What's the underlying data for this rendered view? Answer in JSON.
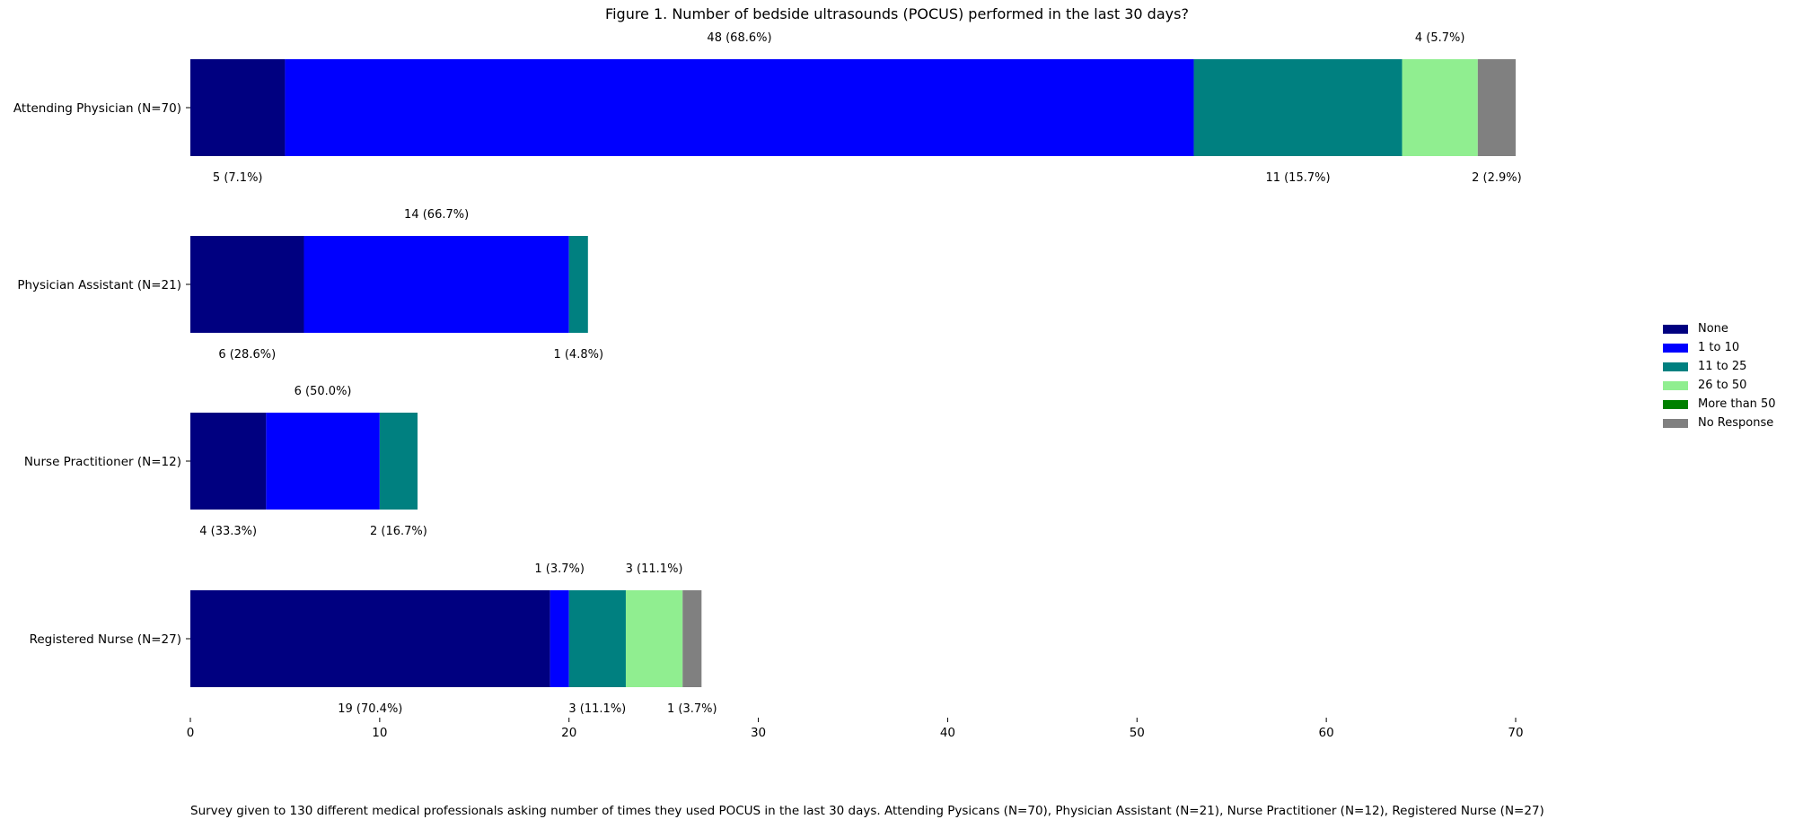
{
  "chart_data": {
    "type": "bar",
    "orientation": "horizontal",
    "stacked": true,
    "title": "Figure 1. Number of bedside ultrasounds (POCUS) performed in the last 30 days?",
    "categories": [
      "Attending Physician (N=70)",
      "Physician Assistant (N=21)",
      "Nurse Practitioner (N=12)",
      "Registered Nurse (N=27)"
    ],
    "series": [
      {
        "name": "None",
        "color": "#000080",
        "values": [
          5,
          6,
          4,
          19
        ]
      },
      {
        "name": "1 to 10",
        "color": "#0000ff",
        "values": [
          48,
          14,
          6,
          1
        ]
      },
      {
        "name": "11 to 25",
        "color": "#008080",
        "values": [
          11,
          1,
          2,
          3
        ]
      },
      {
        "name": "26 to 50",
        "color": "#90ee90",
        "values": [
          4,
          0,
          0,
          3
        ]
      },
      {
        "name": "More than 50",
        "color": "#008000",
        "values": [
          0,
          0,
          0,
          0
        ]
      },
      {
        "name": "No Response",
        "color": "#808080",
        "values": [
          2,
          0,
          0,
          1
        ]
      }
    ],
    "data_labels": [
      [
        "5 (7.1%)",
        "48 (68.6%)",
        "11 (15.7%)",
        "4 (5.7%)",
        "",
        "2 (2.9%)"
      ],
      [
        "6 (28.6%)",
        "14 (66.7%)",
        "1 (4.8%)",
        "",
        "",
        ""
      ],
      [
        "4 (33.3%)",
        "6 (50.0%)",
        "2 (16.7%)",
        "",
        "",
        ""
      ],
      [
        "19 (70.4%)",
        "1 (3.7%)",
        "3 (11.1%)",
        "3 (11.1%)",
        "",
        "1 (3.7%)"
      ]
    ],
    "xlim": [
      0,
      70
    ],
    "xticks": [
      0,
      10,
      20,
      30,
      40,
      50,
      60,
      70
    ],
    "grid": false,
    "legend_position": "right"
  },
  "footnote": "Survey given to 130 different medical professionals asking number of times they used POCUS in the last 30 days. Attending Pysicans (N=70), Physician Assistant (N=21), Nurse Practitioner (N=12), Registered Nurse (N=27)"
}
